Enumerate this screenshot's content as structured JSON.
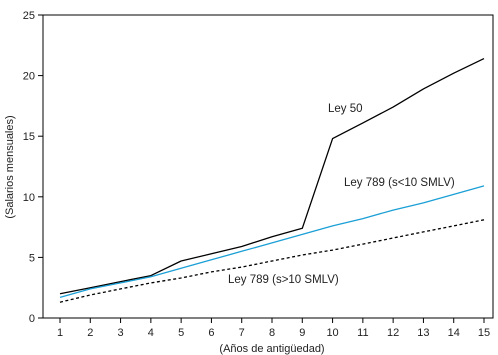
{
  "chart_data": {
    "type": "line",
    "xlabel": "(Años de antigüedad)",
    "ylabel": "(Salarios mensuales)",
    "x": [
      1,
      2,
      3,
      4,
      5,
      6,
      7,
      8,
      9,
      10,
      11,
      12,
      13,
      14,
      15
    ],
    "xlim": [
      1,
      15
    ],
    "ylim": [
      0,
      25
    ],
    "yticks": [
      0,
      5,
      10,
      15,
      20,
      25
    ],
    "grid": false,
    "series": [
      {
        "name": "Ley 50",
        "color": "#000000",
        "style": "solid",
        "values": [
          2.0,
          2.5,
          3.0,
          3.5,
          4.7,
          5.3,
          5.9,
          6.7,
          7.4,
          14.8,
          16.1,
          17.4,
          18.9,
          20.2,
          21.4
        ]
      },
      {
        "name": "Ley 789 (s<10 SMLV)",
        "color": "#1a9fd6",
        "style": "solid",
        "values": [
          1.7,
          2.4,
          2.9,
          3.4,
          4.1,
          4.8,
          5.5,
          6.2,
          6.9,
          7.6,
          8.2,
          8.9,
          9.5,
          10.2,
          10.9
        ]
      },
      {
        "name": "Ley 789 (s>10 SMLV)",
        "color": "#000000",
        "style": "dashed",
        "values": [
          1.3,
          1.9,
          2.4,
          2.9,
          3.3,
          3.8,
          4.2,
          4.7,
          5.2,
          5.6,
          6.1,
          6.6,
          7.1,
          7.6,
          8.1
        ]
      }
    ]
  }
}
